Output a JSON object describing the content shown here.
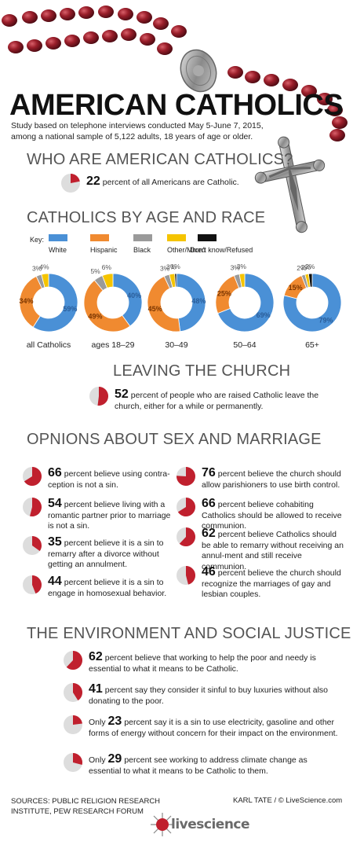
{
  "header": {
    "title": "AMERICAN CATHOLICS",
    "subtitle": "Study based on telephone interviews conducted May 5-June 7, 2015, among a national sample of 5,122 adults, 18 years of age or older."
  },
  "who": {
    "heading": "WHO ARE AMERICAN CATHOLICS?",
    "stat": {
      "value": 22,
      "text": "percent of all Americans are Catholic."
    }
  },
  "age_race": {
    "heading": "CATHOLICS BY AGE AND RACE",
    "key_label": "Key:",
    "key": [
      {
        "label": "White",
        "color": "#4a90d6"
      },
      {
        "label": "Hispanic",
        "color": "#f08a30"
      },
      {
        "label": "Black",
        "color": "#9a9a9a"
      },
      {
        "label": "Other/Mixed",
        "color": "#f5c400"
      },
      {
        "label": "Don't know/Refused",
        "color": "#111111"
      }
    ]
  },
  "chart_data": {
    "type": "pie",
    "series_names": [
      "White",
      "Hispanic",
      "Black",
      "Other/Mixed",
      "Don't know/Refused"
    ],
    "charts": [
      {
        "label": "all Catholics",
        "values": [
          59,
          34,
          3,
          4,
          0
        ]
      },
      {
        "label": "ages 18–29",
        "values": [
          40,
          49,
          5,
          6,
          0
        ]
      },
      {
        "label": "30–49",
        "values": [
          48,
          45,
          3,
          3,
          1
        ]
      },
      {
        "label": "50–64",
        "values": [
          69,
          25,
          3,
          3,
          0
        ]
      },
      {
        "label": "65+",
        "values": [
          79,
          15,
          2,
          2,
          2
        ]
      }
    ]
  },
  "leaving": {
    "heading": "LEAVING THE CHURCH",
    "stat": {
      "value": 52,
      "text": "percent of people who are raised Catholic leave the church, either for a while or permanently."
    }
  },
  "opinions": {
    "heading": "OPNIONS ABOUT SEX AND MARRIAGE",
    "left": [
      {
        "value": 66,
        "text": "percent believe using contra-ception is not a sin."
      },
      {
        "value": 54,
        "text": "percent believe living with a romantic partner prior to marriage is not a sin."
      },
      {
        "value": 35,
        "text": "percent believe it is a sin to remarry after a divorce without getting an annulment."
      },
      {
        "value": 44,
        "text": "percent believe it is a sin to engage in homosexual behavior."
      }
    ],
    "right": [
      {
        "value": 76,
        "text": "percent believe the church should allow parishioners to use birth control."
      },
      {
        "value": 66,
        "text": "percent believe cohabiting Catholics should be allowed to receive communion."
      },
      {
        "value": 62,
        "text": "percent believe Catholics should be able to remarry without receiving an annul-ment and still receive communion."
      },
      {
        "value": 46,
        "text": "percent believe the church should recognize the marriages of gay and lesbian couples."
      }
    ]
  },
  "environment": {
    "heading": "THE ENVIRONMENT AND SOCIAL JUSTICE",
    "items": [
      {
        "prefix": "",
        "value": 62,
        "text": "percent believe that working to help the poor and needy is essential to what it means to be Catholic."
      },
      {
        "prefix": "",
        "value": 41,
        "text": "percent say they consider it sinful to buy luxuries without also donating to the poor."
      },
      {
        "prefix": "Only",
        "value": 23,
        "text": "percent say it is a sin to use electricity, gasoline and other forms of energy without concern for their impact on the environment."
      },
      {
        "prefix": "Only",
        "value": 29,
        "text": "percent see working to address climate change as essential to what it means to be Catholic to them."
      }
    ]
  },
  "footer": {
    "sources": "SOURCES: PUBLIC RELIGION RESEARCH INSTITUTE, PEW RESEARCH FORUM",
    "credit": "KARL TATE / © LiveScience.com",
    "logo": "livescience"
  },
  "colors": {
    "pie_fill": "#c0202e",
    "pie_bg": "#dddddd"
  }
}
